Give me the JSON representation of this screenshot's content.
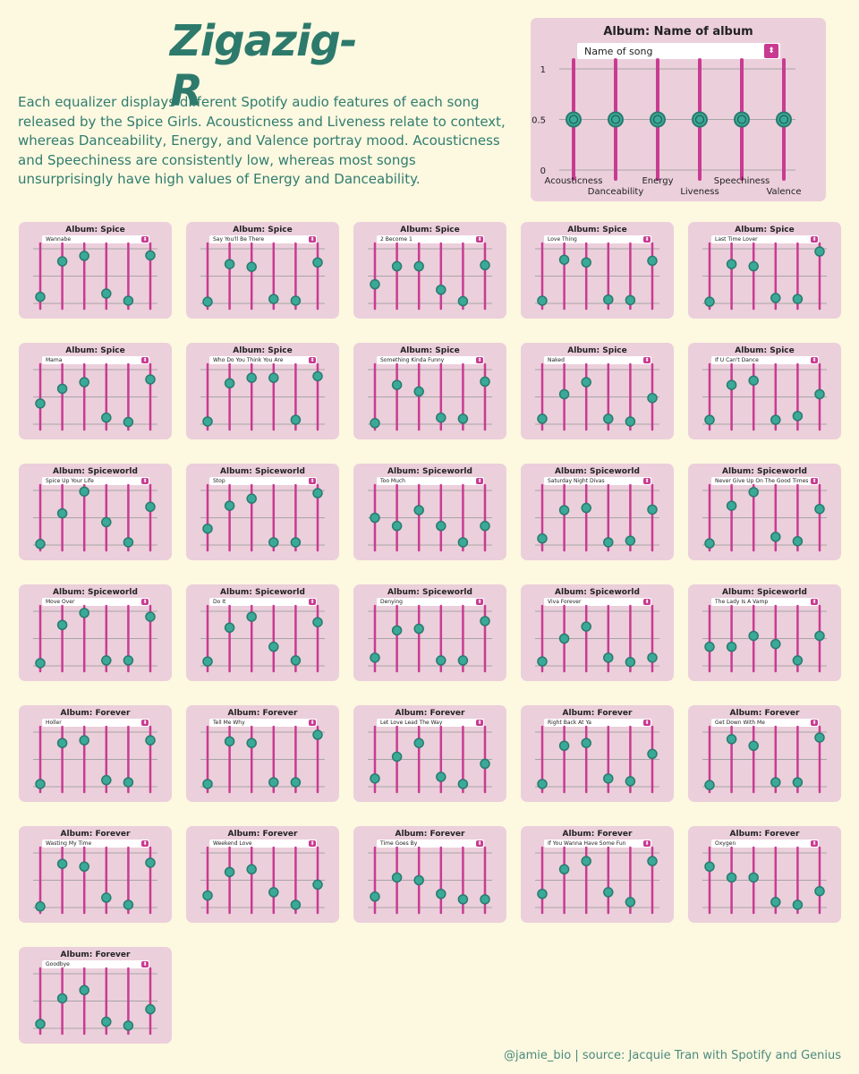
{
  "title": "Zigazig-R",
  "description": "Each equalizer displays different Spotify audio features of each song released by the Spice Girls. Acousticness and Liveness relate to context, whereas Danceability, Energy, and Valence portray mood. Acousticness and Speechiness are consistently low, whereas most songs unsurprisingly have high values of Energy and Danceability.",
  "footer": "@jamie_bio | source: Jacquie Tran with Spotify and Genius",
  "colors": {
    "background": "#fdf8e0",
    "panel": "#ebcfdb",
    "slider": "#c93b92",
    "knob": "#3aaa98",
    "knob_stroke": "#2a7a6e",
    "title": "#2d7a6c"
  },
  "legend_panel": {
    "album_label": "Album: Name of album",
    "song_label": "Name of song",
    "dropdown_icon": "updown-arrows-icon",
    "y_ticks": [
      "1",
      "0.5",
      "0"
    ],
    "features": [
      "Acousticness",
      "Danceability",
      "Energy",
      "Liveness",
      "Speechiness",
      "Valence"
    ],
    "values": [
      0.5,
      0.5,
      0.5,
      0.5,
      0.5,
      0.5
    ]
  },
  "chart_data": {
    "type": "slider-equalizer",
    "features": [
      "Acousticness",
      "Danceability",
      "Energy",
      "Liveness",
      "Speechiness",
      "Valence"
    ],
    "ylim": [
      0,
      1
    ],
    "songs": [
      {
        "album": "Album: Spice",
        "song": "Wannabe",
        "values": [
          0.12,
          0.77,
          0.87,
          0.18,
          0.05,
          0.88
        ]
      },
      {
        "album": "Album: Spice",
        "song": "Say You'll Be There",
        "values": [
          0.03,
          0.72,
          0.67,
          0.08,
          0.05,
          0.75
        ]
      },
      {
        "album": "Album: Spice",
        "song": "2 Become 1",
        "values": [
          0.35,
          0.68,
          0.68,
          0.25,
          0.04,
          0.7
        ]
      },
      {
        "album": "Album: Spice",
        "song": "Love Thing",
        "values": [
          0.05,
          0.8,
          0.75,
          0.07,
          0.06,
          0.78
        ]
      },
      {
        "album": "Album: Spice",
        "song": "Last Time Lover",
        "values": [
          0.03,
          0.72,
          0.68,
          0.1,
          0.08,
          0.95
        ]
      },
      {
        "album": "Album: Spice",
        "song": "Mama",
        "values": [
          0.38,
          0.65,
          0.77,
          0.12,
          0.04,
          0.82
        ]
      },
      {
        "album": "Album: Spice",
        "song": "Who Do You Think You Are",
        "values": [
          0.05,
          0.75,
          0.85,
          0.85,
          0.08,
          0.88
        ]
      },
      {
        "album": "Album: Spice",
        "song": "Something Kinda Funny",
        "values": [
          0.02,
          0.72,
          0.6,
          0.12,
          0.1,
          0.78
        ]
      },
      {
        "album": "Album: Spice",
        "song": "Naked",
        "values": [
          0.1,
          0.55,
          0.77,
          0.1,
          0.05,
          0.48
        ]
      },
      {
        "album": "Album: Spice",
        "song": "If U Can't Dance",
        "values": [
          0.08,
          0.72,
          0.8,
          0.08,
          0.15,
          0.55
        ]
      },
      {
        "album": "Album: Spiceworld",
        "song": "Spice Up Your Life",
        "values": [
          0.02,
          0.58,
          0.98,
          0.42,
          0.05,
          0.7
        ]
      },
      {
        "album": "Album: Spiceworld",
        "song": "Stop",
        "values": [
          0.3,
          0.72,
          0.85,
          0.05,
          0.05,
          0.95
        ]
      },
      {
        "album": "Album: Spiceworld",
        "song": "Too Much",
        "values": [
          0.5,
          0.35,
          0.64,
          0.35,
          0.05,
          0.35
        ]
      },
      {
        "album": "Album: Spiceworld",
        "song": "Saturday Night Divas",
        "values": [
          0.12,
          0.64,
          0.68,
          0.05,
          0.08,
          0.65
        ]
      },
      {
        "album": "Album: Spiceworld",
        "song": "Never Give Up On The Good Times",
        "values": [
          0.03,
          0.72,
          0.97,
          0.15,
          0.07,
          0.66
        ]
      },
      {
        "album": "Album: Spiceworld",
        "song": "Move Over",
        "values": [
          0.05,
          0.75,
          0.97,
          0.1,
          0.1,
          0.9
        ]
      },
      {
        "album": "Album: Spiceworld",
        "song": "Do It",
        "values": [
          0.08,
          0.7,
          0.9,
          0.35,
          0.1,
          0.8
        ]
      },
      {
        "album": "Album: Spiceworld",
        "song": "Denying",
        "values": [
          0.15,
          0.65,
          0.68,
          0.1,
          0.1,
          0.82
        ]
      },
      {
        "album": "Album: Spiceworld",
        "song": "Viva Forever",
        "values": [
          0.08,
          0.5,
          0.72,
          0.15,
          0.07,
          0.15
        ]
      },
      {
        "album": "Album: Spiceworld",
        "song": "The Lady Is A Vamp",
        "values": [
          0.35,
          0.35,
          0.55,
          0.4,
          0.1,
          0.55
        ]
      },
      {
        "album": "Album: Forever",
        "song": "Holler",
        "values": [
          0.05,
          0.8,
          0.85,
          0.12,
          0.08,
          0.85
        ]
      },
      {
        "album": "Album: Forever",
        "song": "Tell Me Why",
        "values": [
          0.05,
          0.83,
          0.8,
          0.08,
          0.08,
          0.95
        ]
      },
      {
        "album": "Album: Forever",
        "song": "Let Love Lead The Way",
        "values": [
          0.15,
          0.55,
          0.8,
          0.18,
          0.05,
          0.42
        ]
      },
      {
        "album": "Album: Forever",
        "song": "Right Back At Ya",
        "values": [
          0.05,
          0.75,
          0.8,
          0.15,
          0.1,
          0.6
        ]
      },
      {
        "album": "Album: Forever",
        "song": "Get Down With Me",
        "values": [
          0.03,
          0.87,
          0.75,
          0.08,
          0.08,
          0.9
        ]
      },
      {
        "album": "Album: Forever",
        "song": "Wasting My Time",
        "values": [
          0.02,
          0.8,
          0.75,
          0.18,
          0.05,
          0.82
        ]
      },
      {
        "album": "Album: Forever",
        "song": "Weekend Love",
        "values": [
          0.22,
          0.65,
          0.7,
          0.28,
          0.05,
          0.42
        ]
      },
      {
        "album": "Album: Forever",
        "song": "Time Goes By",
        "values": [
          0.2,
          0.55,
          0.5,
          0.25,
          0.15,
          0.15
        ]
      },
      {
        "album": "Album: Forever",
        "song": "If You Wanna Have Some Fun",
        "values": [
          0.25,
          0.7,
          0.85,
          0.28,
          0.1,
          0.85
        ]
      },
      {
        "album": "Album: Forever",
        "song": "Oxygen",
        "values": [
          0.75,
          0.55,
          0.55,
          0.1,
          0.05,
          0.3
        ]
      },
      {
        "album": "Album: Forever",
        "song": "Goodbye",
        "values": [
          0.08,
          0.55,
          0.7,
          0.12,
          0.05,
          0.35
        ]
      }
    ]
  }
}
